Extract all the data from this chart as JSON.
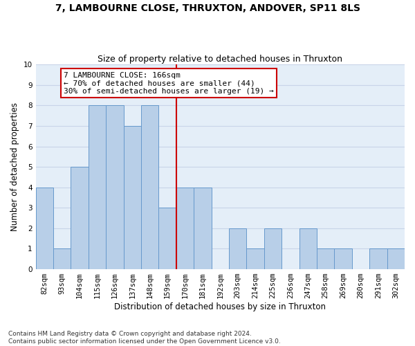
{
  "title": "7, LAMBOURNE CLOSE, THRUXTON, ANDOVER, SP11 8LS",
  "subtitle": "Size of property relative to detached houses in Thruxton",
  "xlabel": "Distribution of detached houses by size in Thruxton",
  "ylabel": "Number of detached properties",
  "categories": [
    "82sqm",
    "93sqm",
    "104sqm",
    "115sqm",
    "126sqm",
    "137sqm",
    "148sqm",
    "159sqm",
    "170sqm",
    "181sqm",
    "192sqm",
    "203sqm",
    "214sqm",
    "225sqm",
    "236sqm",
    "247sqm",
    "258sqm",
    "269sqm",
    "280sqm",
    "291sqm",
    "302sqm"
  ],
  "values": [
    4,
    1,
    5,
    8,
    8,
    7,
    8,
    3,
    4,
    4,
    0,
    2,
    1,
    2,
    0,
    2,
    1,
    1,
    0,
    1,
    1
  ],
  "bar_color": "#b8cfe8",
  "bar_edge_color": "#6699cc",
  "vline_pos": 7.5,
  "vline_color": "#cc0000",
  "annotation_text": "7 LAMBOURNE CLOSE: 166sqm\n← 70% of detached houses are smaller (44)\n30% of semi-detached houses are larger (19) →",
  "annotation_box_color": "#ffffff",
  "annotation_box_edge": "#cc0000",
  "ylim": [
    0,
    10
  ],
  "yticks": [
    0,
    1,
    2,
    3,
    4,
    5,
    6,
    7,
    8,
    9,
    10
  ],
  "grid_color": "#c8d4e8",
  "background_color": "#dce6f0",
  "plot_bg_color": "#e4eef8",
  "footnote": "Contains HM Land Registry data © Crown copyright and database right 2024.\nContains public sector information licensed under the Open Government Licence v3.0.",
  "title_fontsize": 10,
  "subtitle_fontsize": 9,
  "xlabel_fontsize": 8.5,
  "ylabel_fontsize": 8.5,
  "tick_fontsize": 7.5,
  "annot_fontsize": 8,
  "footnote_fontsize": 6.5
}
